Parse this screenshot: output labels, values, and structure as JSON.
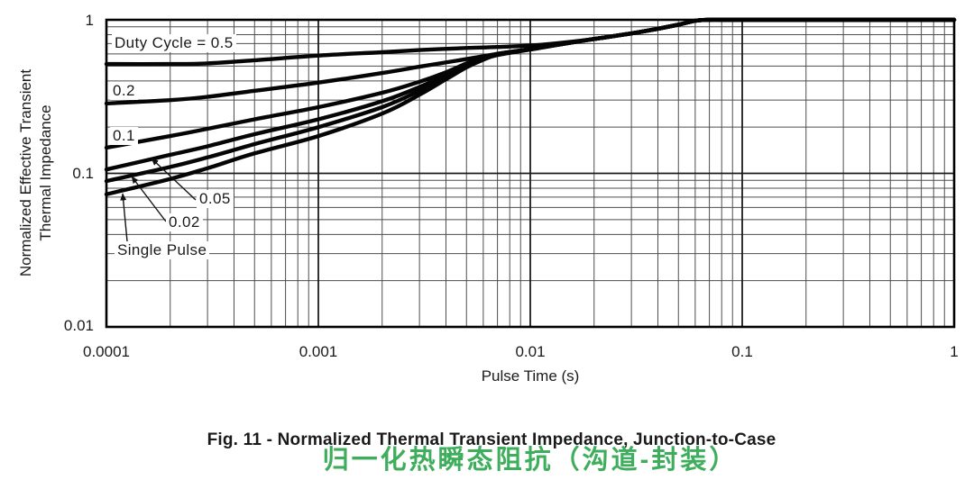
{
  "figure": {
    "caption_en": "Fig. 11 - Normalized Thermal Transient Impedance, Junction-to-Case",
    "caption_zh": "归一化热瞬态阻抗（沟道-封装）",
    "accent_green": "#3EAE5C",
    "line_color": "#050505",
    "background": "#FFFFFF"
  },
  "chart_data": {
    "type": "line",
    "x_scale": "log",
    "y_scale": "log",
    "xlabel": "Pulse Time (s)",
    "ylabel_line1": "Normalized Effective Transient",
    "ylabel_line2": "Thermal Impedance",
    "xlim": [
      0.0001,
      1
    ],
    "ylim": [
      0.01,
      1
    ],
    "x_tick_labels": [
      "0.0001",
      "0.001",
      "0.01",
      "0.1",
      "1"
    ],
    "y_tick_labels": [
      "1",
      "0.1",
      "0.01"
    ],
    "grid": "log-log, minor gridlines on, dark gray",
    "legend_position": "labels inside plot with leader arrows",
    "series": [
      {
        "name": "duty-cycle-0.5",
        "label": "Duty Cycle = 0.5",
        "duty_cycle": 0.5,
        "points": [
          [
            0.0001,
            0.515
          ],
          [
            0.0002,
            0.515
          ],
          [
            0.0003,
            0.52
          ],
          [
            0.0005,
            0.545
          ],
          [
            0.001,
            0.585
          ],
          [
            0.002,
            0.615
          ],
          [
            0.003,
            0.635
          ],
          [
            0.005,
            0.655
          ],
          [
            0.007,
            0.665
          ],
          [
            0.01,
            0.68
          ],
          [
            0.015,
            0.715
          ],
          [
            0.02,
            0.75
          ],
          [
            0.03,
            0.815
          ],
          [
            0.04,
            0.875
          ],
          [
            0.05,
            0.93
          ],
          [
            0.06,
            0.985
          ],
          [
            0.07,
            1.0
          ],
          [
            0.08,
            1.0
          ],
          [
            0.1,
            1.0
          ],
          [
            0.3,
            1.0
          ],
          [
            1,
            1.0
          ]
        ]
      },
      {
        "name": "duty-cycle-0.2",
        "label": "0.2",
        "duty_cycle": 0.2,
        "points": [
          [
            0.0001,
            0.285
          ],
          [
            0.0002,
            0.3
          ],
          [
            0.0003,
            0.315
          ],
          [
            0.0005,
            0.345
          ],
          [
            0.001,
            0.39
          ],
          [
            0.002,
            0.45
          ],
          [
            0.003,
            0.495
          ],
          [
            0.005,
            0.555
          ],
          [
            0.007,
            0.6
          ],
          [
            0.01,
            0.645
          ],
          [
            0.015,
            0.705
          ],
          [
            0.02,
            0.75
          ],
          [
            0.03,
            0.815
          ],
          [
            0.04,
            0.875
          ],
          [
            0.05,
            0.93
          ],
          [
            0.06,
            0.985
          ],
          [
            0.07,
            1.0
          ],
          [
            0.08,
            1.0
          ],
          [
            0.1,
            1.0
          ],
          [
            0.3,
            1.0
          ],
          [
            1,
            1.0
          ]
        ]
      },
      {
        "name": "duty-cycle-0.1",
        "label": "0.1",
        "duty_cycle": 0.1,
        "points": [
          [
            0.0001,
            0.147
          ],
          [
            0.0002,
            0.175
          ],
          [
            0.0003,
            0.195
          ],
          [
            0.0005,
            0.225
          ],
          [
            0.001,
            0.27
          ],
          [
            0.002,
            0.335
          ],
          [
            0.003,
            0.395
          ],
          [
            0.004,
            0.455
          ],
          [
            0.005,
            0.52
          ],
          [
            0.006,
            0.565
          ],
          [
            0.007,
            0.6
          ],
          [
            0.01,
            0.645
          ],
          [
            0.015,
            0.705
          ],
          [
            0.02,
            0.75
          ],
          [
            0.03,
            0.815
          ],
          [
            0.04,
            0.875
          ],
          [
            0.05,
            0.93
          ],
          [
            0.06,
            0.985
          ],
          [
            0.07,
            1.0
          ],
          [
            0.08,
            1.0
          ],
          [
            0.1,
            1.0
          ],
          [
            0.3,
            1.0
          ],
          [
            1,
            1.0
          ]
        ]
      },
      {
        "name": "duty-cycle-0.05",
        "label": "0.05",
        "duty_cycle": 0.05,
        "points": [
          [
            0.0001,
            0.106
          ],
          [
            0.0002,
            0.132
          ],
          [
            0.0003,
            0.15
          ],
          [
            0.0005,
            0.18
          ],
          [
            0.001,
            0.225
          ],
          [
            0.002,
            0.295
          ],
          [
            0.003,
            0.365
          ],
          [
            0.004,
            0.44
          ],
          [
            0.005,
            0.51
          ],
          [
            0.006,
            0.56
          ],
          [
            0.007,
            0.6
          ],
          [
            0.01,
            0.645
          ],
          [
            0.015,
            0.705
          ],
          [
            0.02,
            0.75
          ],
          [
            0.03,
            0.815
          ],
          [
            0.04,
            0.875
          ],
          [
            0.05,
            0.93
          ],
          [
            0.06,
            0.985
          ],
          [
            0.07,
            1.0
          ],
          [
            0.08,
            1.0
          ],
          [
            0.1,
            1.0
          ],
          [
            0.3,
            1.0
          ],
          [
            1,
            1.0
          ]
        ]
      },
      {
        "name": "duty-cycle-0.02",
        "label": "0.02",
        "duty_cycle": 0.02,
        "points": [
          [
            0.0001,
            0.089
          ],
          [
            0.0002,
            0.11
          ],
          [
            0.0003,
            0.127
          ],
          [
            0.0005,
            0.155
          ],
          [
            0.001,
            0.2
          ],
          [
            0.002,
            0.27
          ],
          [
            0.003,
            0.345
          ],
          [
            0.004,
            0.425
          ],
          [
            0.005,
            0.5
          ],
          [
            0.006,
            0.555
          ],
          [
            0.007,
            0.595
          ],
          [
            0.01,
            0.64
          ],
          [
            0.015,
            0.705
          ],
          [
            0.02,
            0.75
          ],
          [
            0.03,
            0.815
          ],
          [
            0.04,
            0.875
          ],
          [
            0.05,
            0.93
          ],
          [
            0.06,
            0.985
          ],
          [
            0.07,
            1.0
          ],
          [
            0.08,
            1.0
          ],
          [
            0.1,
            1.0
          ],
          [
            0.3,
            1.0
          ],
          [
            1,
            1.0
          ]
        ]
      },
      {
        "name": "single-pulse",
        "label": "Single Pulse",
        "points": [
          [
            0.0001,
            0.073
          ],
          [
            0.0002,
            0.092
          ],
          [
            0.0003,
            0.108
          ],
          [
            0.0005,
            0.135
          ],
          [
            0.001,
            0.175
          ],
          [
            0.002,
            0.245
          ],
          [
            0.003,
            0.325
          ],
          [
            0.004,
            0.41
          ],
          [
            0.005,
            0.49
          ],
          [
            0.006,
            0.55
          ],
          [
            0.007,
            0.59
          ],
          [
            0.01,
            0.64
          ],
          [
            0.015,
            0.705
          ],
          [
            0.02,
            0.75
          ],
          [
            0.03,
            0.815
          ],
          [
            0.04,
            0.875
          ],
          [
            0.05,
            0.93
          ],
          [
            0.06,
            0.985
          ],
          [
            0.07,
            1.0
          ],
          [
            0.08,
            1.0
          ],
          [
            0.1,
            1.0
          ],
          [
            0.3,
            1.0
          ],
          [
            1,
            1.0
          ]
        ]
      }
    ]
  }
}
